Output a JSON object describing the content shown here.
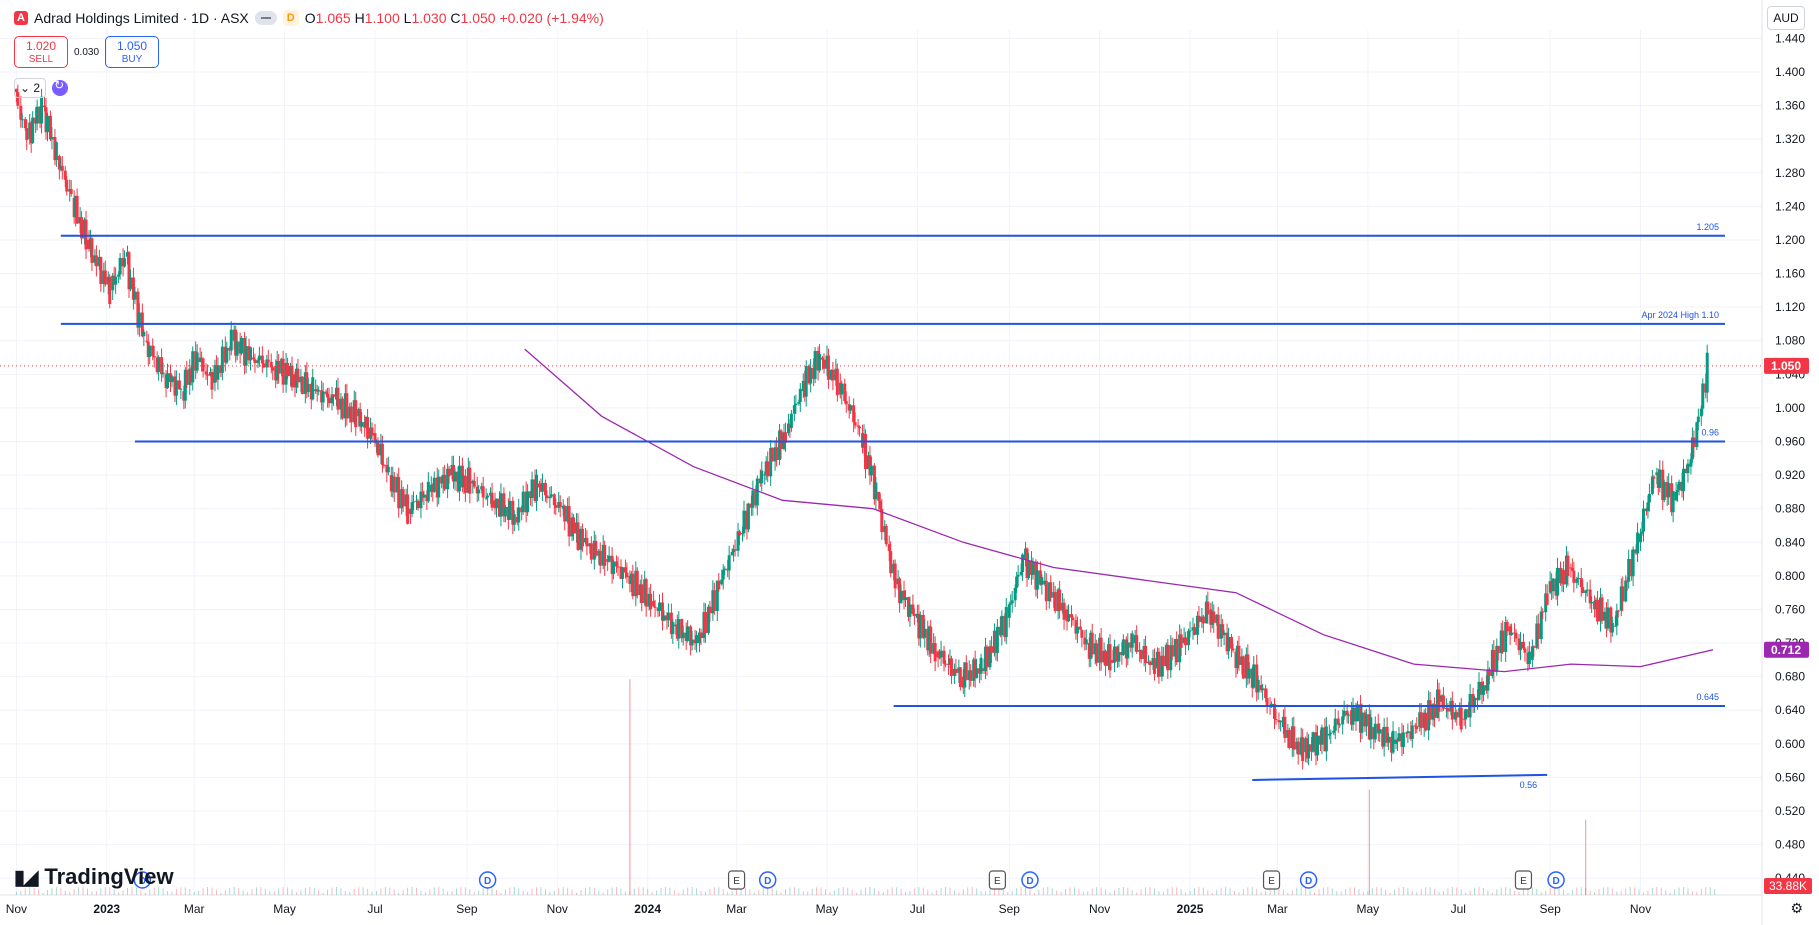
{
  "header": {
    "symbol": "Adrad Holdings Limited · 1D · ASX",
    "status_badge": "D",
    "open_label": "O",
    "open": "1.065",
    "high_label": "H",
    "high": "1.100",
    "low_label": "L",
    "low": "1.030",
    "close_label": "C",
    "close": "1.050",
    "change": "+0.020 (+1.94%)"
  },
  "trade": {
    "sell_price": "1.020",
    "sell_label": "SELL",
    "spread": "0.030",
    "buy_price": "1.050",
    "buy_label": "BUY"
  },
  "indicators": {
    "count": "2"
  },
  "brand": "TradingView",
  "currency": "AUD",
  "colors": {
    "up": "#089981",
    "down": "#f23645",
    "hline": "#1e53e5",
    "ma": "#9c27b0"
  },
  "chart_data": {
    "type": "candlestick",
    "symbol": "Adrad Holdings Limited",
    "interval": "1D",
    "exchange": "ASX",
    "price_axis": {
      "range": [
        0.42,
        1.45
      ],
      "ticks": [
        "1.440",
        "1.400",
        "1.360",
        "1.320",
        "1.280",
        "1.240",
        "1.200",
        "1.160",
        "1.120",
        "1.080",
        "1.040",
        "1.000",
        "0.960",
        "0.920",
        "0.880",
        "0.840",
        "0.800",
        "0.760",
        "0.720",
        "0.680",
        "0.640",
        "0.600",
        "0.560",
        "0.520",
        "0.480",
        "0.440"
      ]
    },
    "time_axis": {
      "ticks": [
        "Nov",
        "2023",
        "Mar",
        "May",
        "Jul",
        "Sep",
        "Nov",
        "2024",
        "Mar",
        "May",
        "Jul",
        "Sep",
        "Nov",
        "2025",
        "Mar",
        "May",
        "Jul",
        "Sep",
        "Nov"
      ]
    },
    "series": [
      {
        "type": "candlestick",
        "points": [
          [
            "2022-11-01",
            1.38
          ],
          [
            "2022-11-10",
            1.32
          ],
          [
            "2022-11-20",
            1.36
          ],
          [
            "2022-11-30",
            1.3
          ],
          [
            "2022-12-10",
            1.25
          ],
          [
            "2022-12-20",
            1.2
          ],
          [
            "2023-01-05",
            1.14
          ],
          [
            "2023-01-15",
            1.18
          ],
          [
            "2023-01-28",
            1.08
          ],
          [
            "2023-02-10",
            1.04
          ],
          [
            "2023-02-22",
            1.02
          ],
          [
            "2023-03-05",
            1.06
          ],
          [
            "2023-03-15",
            1.03
          ],
          [
            "2023-03-28",
            1.08
          ],
          [
            "2023-04-10",
            1.06
          ],
          [
            "2023-04-25",
            1.05
          ],
          [
            "2023-05-08",
            1.04
          ],
          [
            "2023-05-22",
            1.02
          ],
          [
            "2023-06-05",
            1.01
          ],
          [
            "2023-06-20",
            0.99
          ],
          [
            "2023-07-01",
            0.97
          ],
          [
            "2023-07-12",
            0.92
          ],
          [
            "2023-07-25",
            0.88
          ],
          [
            "2023-08-08",
            0.9
          ],
          [
            "2023-08-22",
            0.92
          ],
          [
            "2023-09-05",
            0.91
          ],
          [
            "2023-09-20",
            0.89
          ],
          [
            "2023-10-05",
            0.87
          ],
          [
            "2023-10-20",
            0.91
          ],
          [
            "2023-11-05",
            0.88
          ],
          [
            "2023-11-20",
            0.84
          ],
          [
            "2023-12-05",
            0.82
          ],
          [
            "2023-12-20",
            0.8
          ],
          [
            "2024-01-05",
            0.77
          ],
          [
            "2024-01-20",
            0.74
          ],
          [
            "2024-02-05",
            0.72
          ],
          [
            "2024-02-20",
            0.79
          ],
          [
            "2024-03-05",
            0.85
          ],
          [
            "2024-03-20",
            0.92
          ],
          [
            "2024-04-05",
            0.97
          ],
          [
            "2024-04-15",
            1.02
          ],
          [
            "2024-04-28",
            1.06
          ],
          [
            "2024-05-10",
            1.03
          ],
          [
            "2024-05-25",
            0.97
          ],
          [
            "2024-06-05",
            0.9
          ],
          [
            "2024-06-18",
            0.79
          ],
          [
            "2024-07-01",
            0.75
          ],
          [
            "2024-07-15",
            0.71
          ],
          [
            "2024-08-01",
            0.68
          ],
          [
            "2024-08-15",
            0.69
          ],
          [
            "2024-09-01",
            0.75
          ],
          [
            "2024-09-12",
            0.82
          ],
          [
            "2024-09-25",
            0.79
          ],
          [
            "2024-10-10",
            0.76
          ],
          [
            "2024-10-25",
            0.72
          ],
          [
            "2024-11-10",
            0.7
          ],
          [
            "2024-11-25",
            0.72
          ],
          [
            "2024-12-10",
            0.69
          ],
          [
            "2024-12-28",
            0.72
          ],
          [
            "2025-01-15",
            0.76
          ],
          [
            "2025-02-01",
            0.71
          ],
          [
            "2025-02-18",
            0.67
          ],
          [
            "2025-03-05",
            0.62
          ],
          [
            "2025-03-20",
            0.59
          ],
          [
            "2025-04-05",
            0.61
          ],
          [
            "2025-04-20",
            0.64
          ],
          [
            "2025-05-05",
            0.62
          ],
          [
            "2025-05-20",
            0.6
          ],
          [
            "2025-06-05",
            0.62
          ],
          [
            "2025-06-20",
            0.65
          ],
          [
            "2025-07-05",
            0.63
          ],
          [
            "2025-07-20",
            0.67
          ],
          [
            "2025-08-05",
            0.74
          ],
          [
            "2025-08-20",
            0.7
          ],
          [
            "2025-09-01",
            0.78
          ],
          [
            "2025-09-15",
            0.81
          ],
          [
            "2025-10-01",
            0.77
          ],
          [
            "2025-10-15",
            0.74
          ],
          [
            "2025-11-01",
            0.84
          ],
          [
            "2025-11-12",
            0.92
          ],
          [
            "2025-11-25",
            0.89
          ],
          [
            "2025-12-05",
            0.93
          ],
          [
            "2025-12-12",
            0.99
          ],
          [
            "2025-12-18",
            1.05
          ]
        ]
      },
      {
        "type": "moving_average",
        "points": [
          [
            "2023-10-10",
            1.07
          ],
          [
            "2023-12-01",
            0.99
          ],
          [
            "2024-02-01",
            0.93
          ],
          [
            "2024-04-01",
            0.89
          ],
          [
            "2024-06-01",
            0.88
          ],
          [
            "2024-08-01",
            0.84
          ],
          [
            "2024-10-01",
            0.81
          ],
          [
            "2024-12-01",
            0.795
          ],
          [
            "2025-02-01",
            0.78
          ],
          [
            "2025-04-01",
            0.73
          ],
          [
            "2025-06-01",
            0.695
          ],
          [
            "2025-08-01",
            0.686
          ],
          [
            "2025-09-15",
            0.695
          ],
          [
            "2025-11-01",
            0.692
          ],
          [
            "2025-12-20",
            0.712
          ]
        ]
      }
    ],
    "horizontal_lines": [
      {
        "price": 1.205,
        "label": "1.205",
        "from": "2022-12-01"
      },
      {
        "price": 1.1,
        "label": "Apr 2024 High 1.10",
        "from": "2022-12-01"
      },
      {
        "price": 0.96,
        "label": "0.96",
        "from": "2023-01-20"
      },
      {
        "price": 0.645,
        "label": "0.645",
        "from": "2024-06-15"
      }
    ],
    "trend_line": {
      "start": [
        "2025-02-12",
        0.557
      ],
      "end": [
        "2025-08-30",
        0.563
      ],
      "label": "0.56"
    },
    "price_labels": {
      "last": "1.050",
      "ma": "0.712",
      "volume": "33.88K"
    },
    "events": [
      {
        "date": "2023-01-25",
        "label": "D"
      },
      {
        "date": "2023-09-15",
        "label": "D"
      },
      {
        "date": "2024-03-01",
        "label": "E"
      },
      {
        "date": "2024-03-22",
        "label": "D"
      },
      {
        "date": "2024-08-24",
        "label": "E"
      },
      {
        "date": "2024-09-15",
        "label": "D"
      },
      {
        "date": "2025-02-25",
        "label": "E"
      },
      {
        "date": "2025-03-22",
        "label": "D"
      },
      {
        "date": "2025-08-14",
        "label": "E"
      },
      {
        "date": "2025-09-05",
        "label": "D"
      }
    ],
    "volume_spikes": [
      {
        "date": "2023-12-20",
        "value": 0.86
      },
      {
        "date": "2025-05-02",
        "value": 0.42
      },
      {
        "date": "2025-09-25",
        "value": 0.3
      }
    ],
    "grid": true
  }
}
